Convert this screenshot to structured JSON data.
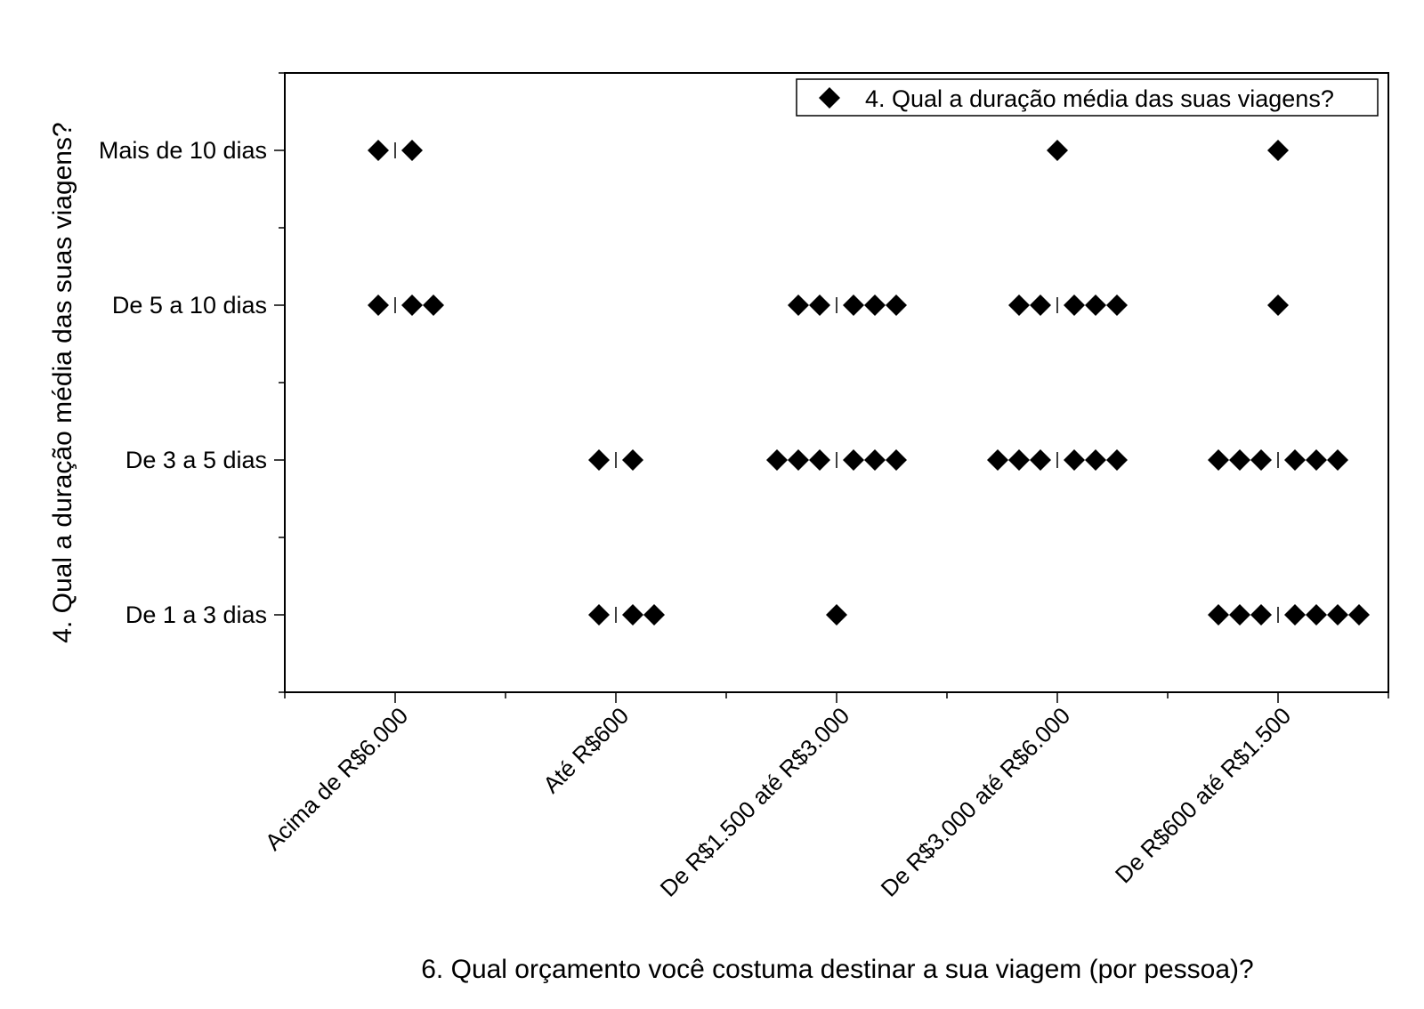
{
  "chart_data": {
    "type": "scatter",
    "xlabel": "6. Qual orçamento você costuma destinar a sua viagem (por pessoa)?",
    "ylabel": "4. Qual a duração média das suas viagens?",
    "categories": [
      "Acima de R$6.000",
      "Até R$600",
      "De R$1.500 até R$3.000",
      "De R$3.000 até R$6.000",
      "De R$600 até R$1.500"
    ],
    "y_categories": [
      "De 1 a 3 dias",
      "De 3 a 5 dias",
      "De 5 a 10 dias",
      "Mais de 10 dias"
    ],
    "legend": {
      "position": "top-right",
      "label": "4. Qual a duração média das suas viagens?"
    },
    "series": [
      {
        "name": "4. Qual a duração média das suas viagens?",
        "marker": "diamond",
        "color": "#000000",
        "counts": [
          {
            "x": "Acima de R$6.000",
            "y": "Mais de 10 dias",
            "count": 2
          },
          {
            "x": "Acima de R$6.000",
            "y": "De 5 a 10 dias",
            "count": 3
          },
          {
            "x": "Até R$600",
            "y": "De 3 a 5 dias",
            "count": 2
          },
          {
            "x": "Até R$600",
            "y": "De 1 a 3 dias",
            "count": 3
          },
          {
            "x": "De R$1.500 até R$3.000",
            "y": "De 5 a 10 dias",
            "count": 5
          },
          {
            "x": "De R$1.500 até R$3.000",
            "y": "De 3 a 5 dias",
            "count": 6
          },
          {
            "x": "De R$1.500 até R$3.000",
            "y": "De 1 a 3 dias",
            "count": 1
          },
          {
            "x": "De R$3.000 até R$6.000",
            "y": "Mais de 10 dias",
            "count": 1
          },
          {
            "x": "De R$3.000 até R$6.000",
            "y": "De 5 a 10 dias",
            "count": 5
          },
          {
            "x": "De R$3.000 até R$6.000",
            "y": "De 3 a 5 dias",
            "count": 6
          },
          {
            "x": "De R$600 até R$1.500",
            "y": "Mais de 10 dias",
            "count": 1
          },
          {
            "x": "De R$600 até R$1.500",
            "y": "De 5 a 10 dias",
            "count": 1
          },
          {
            "x": "De R$600 até R$1.500",
            "y": "De 3 a 5 dias",
            "count": 6
          },
          {
            "x": "De R$600 até R$1.500",
            "y": "De 1 a 3 dias",
            "count": 7
          }
        ]
      }
    ]
  }
}
